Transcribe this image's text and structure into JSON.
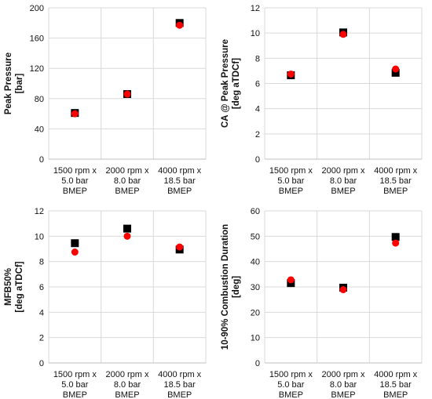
{
  "chart_data": [
    {
      "type": "scatter",
      "title": "",
      "ylabel_lines": [
        "Peak Pressure",
        "[bar]"
      ],
      "categories": [
        [
          "1500 rpm x",
          "5.0 bar",
          "BMEP"
        ],
        [
          "2000 rpm x",
          "8.0 bar",
          "BMEP"
        ],
        [
          "4000 rpm x",
          "18.5 bar",
          "BMEP"
        ]
      ],
      "ylim": [
        0,
        200
      ],
      "yticks": [
        0,
        40,
        80,
        120,
        160,
        200
      ],
      "grid": true,
      "legend": "none",
      "series": [
        {
          "marker": "square",
          "color": "#000000",
          "values": [
            61,
            86,
            180
          ]
        },
        {
          "marker": "circle",
          "color": "#ff0000",
          "values": [
            60,
            86,
            177
          ]
        }
      ]
    },
    {
      "type": "scatter",
      "title": "",
      "ylabel_lines": [
        "CA @ Peak Pressure",
        "[deg aTDCf]"
      ],
      "categories": [
        [
          "1500 rpm x",
          "5.0 bar",
          "BMEP"
        ],
        [
          "2000 rpm x",
          "8.0 bar",
          "BMEP"
        ],
        [
          "4000 rpm x",
          "18.5 bar",
          "BMEP"
        ]
      ],
      "ylim": [
        0,
        12
      ],
      "yticks": [
        0,
        2,
        4,
        6,
        8,
        10,
        12
      ],
      "grid": true,
      "legend": "none",
      "series": [
        {
          "marker": "square",
          "color": "#000000",
          "values": [
            6.65,
            10.05,
            6.85
          ]
        },
        {
          "marker": "circle",
          "color": "#ff0000",
          "values": [
            6.75,
            9.9,
            7.15
          ]
        }
      ]
    },
    {
      "type": "scatter",
      "title": "",
      "ylabel_lines": [
        "MFB50%",
        "[deg aTDCf]"
      ],
      "categories": [
        [
          "1500 rpm x",
          "5.0 bar",
          "BMEP"
        ],
        [
          "2000 rpm x",
          "8.0 bar",
          "BMEP"
        ],
        [
          "4000 rpm x",
          "18.5 bar",
          "BMEP"
        ]
      ],
      "ylim": [
        0,
        12
      ],
      "yticks": [
        0,
        2,
        4,
        6,
        8,
        10,
        12
      ],
      "grid": true,
      "legend": "none",
      "series": [
        {
          "marker": "square",
          "color": "#000000",
          "values": [
            9.45,
            10.6,
            8.95
          ]
        },
        {
          "marker": "circle",
          "color": "#ff0000",
          "values": [
            8.75,
            10.0,
            9.15
          ]
        }
      ]
    },
    {
      "type": "scatter",
      "title": "",
      "ylabel_lines": [
        "10-90% Combustion Duration",
        "[deg]"
      ],
      "categories": [
        [
          "1500 rpm x",
          "5.0 bar",
          "BMEP"
        ],
        [
          "2000 rpm x",
          "8.0 bar",
          "BMEP"
        ],
        [
          "4000 rpm x",
          "18.5 bar",
          "BMEP"
        ]
      ],
      "ylim": [
        0,
        60
      ],
      "yticks": [
        0,
        10,
        20,
        30,
        40,
        50,
        60
      ],
      "grid": true,
      "legend": "none",
      "series": [
        {
          "marker": "square",
          "color": "#000000",
          "values": [
            31.5,
            29.7,
            49.7
          ]
        },
        {
          "marker": "circle",
          "color": "#ff0000",
          "values": [
            32.8,
            28.9,
            47.3
          ]
        }
      ]
    }
  ]
}
